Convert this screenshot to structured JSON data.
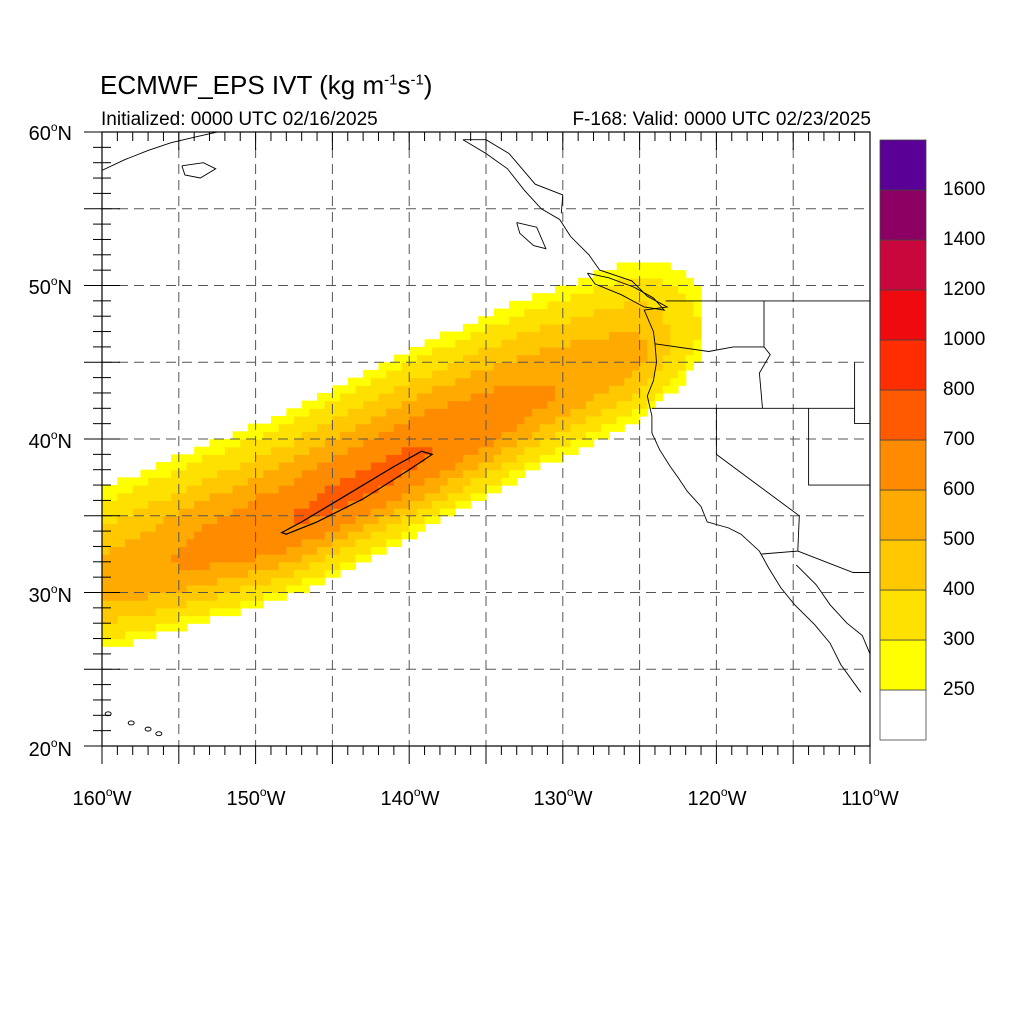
{
  "title": {
    "main": "ECMWF_EPS IVT (kg m",
    "exp1": "-1",
    "mid": "s",
    "exp2": "-1",
    "close": ")"
  },
  "subtitle_left": "Initialized: 0000 UTC 02/16/2025",
  "subtitle_right": "F-168: Valid: 0000 UTC 02/23/2025",
  "degree_symbol": "o",
  "lat_ticks": [
    {
      "value": 60,
      "text": "60",
      "hemi": "N"
    },
    {
      "value": 50,
      "text": "50",
      "hemi": "N"
    },
    {
      "value": 40,
      "text": "40",
      "hemi": "N"
    },
    {
      "value": 30,
      "text": "30",
      "hemi": "N"
    },
    {
      "value": 20,
      "text": "20",
      "hemi": "N"
    }
  ],
  "lon_ticks": [
    {
      "value": -160,
      "text": "160",
      "hemi": "W"
    },
    {
      "value": -150,
      "text": "150",
      "hemi": "W"
    },
    {
      "value": -140,
      "text": "140",
      "hemi": "W"
    },
    {
      "value": -130,
      "text": "130",
      "hemi": "W"
    },
    {
      "value": -120,
      "text": "120",
      "hemi": "W"
    },
    {
      "value": -110,
      "text": "110",
      "hemi": "W"
    }
  ],
  "colorbar": {
    "labels": [
      "250",
      "300",
      "400",
      "500",
      "600",
      "700",
      "800",
      "1000",
      "1200",
      "1400",
      "1600"
    ],
    "colors": [
      "#ffffff",
      "#ffff00",
      "#ffe100",
      "#ffc800",
      "#ffaa00",
      "#ff8c00",
      "#ff5a00",
      "#ff2d00",
      "#ee0a0f",
      "#c8073c",
      "#8c0064",
      "#5a0096"
    ]
  },
  "chart_data": {
    "type": "heatmap",
    "variable": "IVT",
    "units": "kg m-1 s-1",
    "lon_range": [
      -160,
      -110
    ],
    "lat_range": [
      20,
      60
    ],
    "grid": true,
    "levels": [
      250,
      300,
      400,
      500,
      600,
      700,
      800,
      1000,
      1200,
      1400,
      1600
    ],
    "plume": {
      "axis_points": [
        [
          -160,
          30.5
        ],
        [
          -148,
          34.5
        ],
        [
          -140,
          38.5
        ],
        [
          -132,
          42.5
        ],
        [
          -125,
          45.5
        ],
        [
          -120,
          47.5
        ]
      ],
      "peak_ivt": 720,
      "peak_location": [
        -143,
        36.5
      ]
    },
    "contour_700": [
      [
        -148,
        33.8
      ],
      [
        -146,
        34.6
      ],
      [
        -143,
        36.1
      ],
      [
        -140,
        38.0
      ],
      [
        -138.5,
        39.0
      ],
      [
        -139.2,
        39.2
      ],
      [
        -141,
        38.2
      ],
      [
        -144,
        36.4
      ],
      [
        -147,
        34.6
      ],
      [
        -148.3,
        33.9
      ]
    ]
  }
}
